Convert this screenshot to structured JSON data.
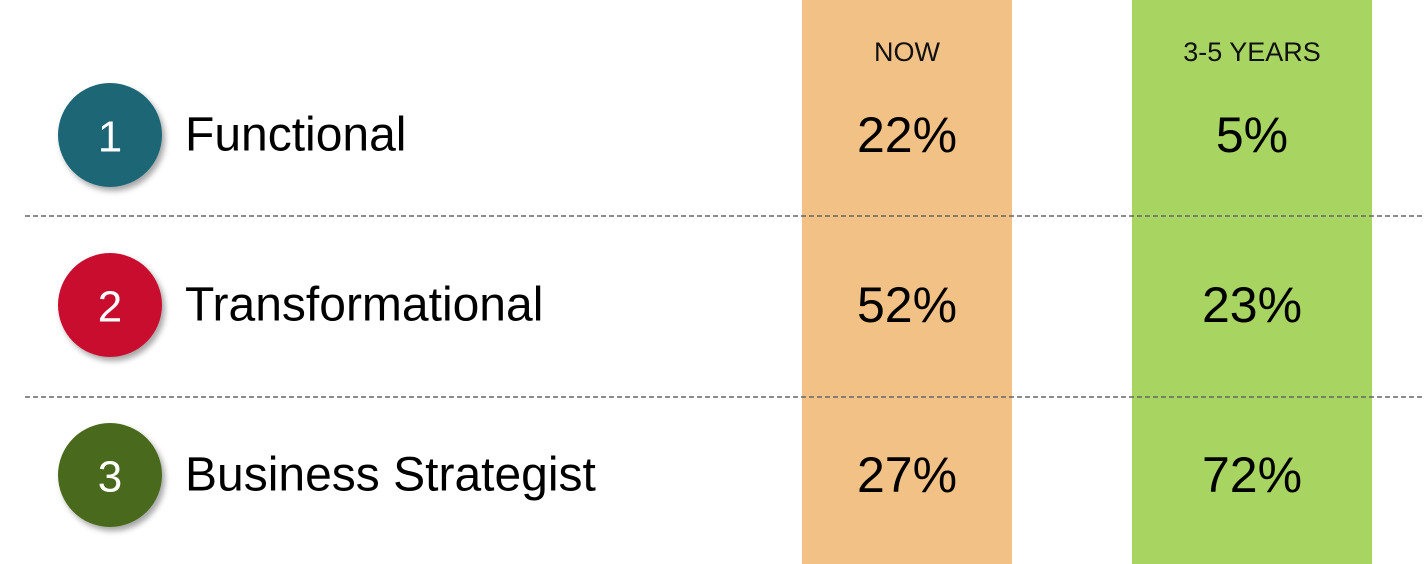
{
  "header": {
    "now": "NOW",
    "later": "3-5 YEARS"
  },
  "rows": [
    {
      "number": "1",
      "label": "Functional",
      "now": "22%",
      "later": "5%"
    },
    {
      "number": "2",
      "label": "Transformational",
      "now": "52%",
      "later": "23%"
    },
    {
      "number": "3",
      "label": "Business Strategist",
      "now": "27%",
      "later": "72%"
    }
  ]
}
